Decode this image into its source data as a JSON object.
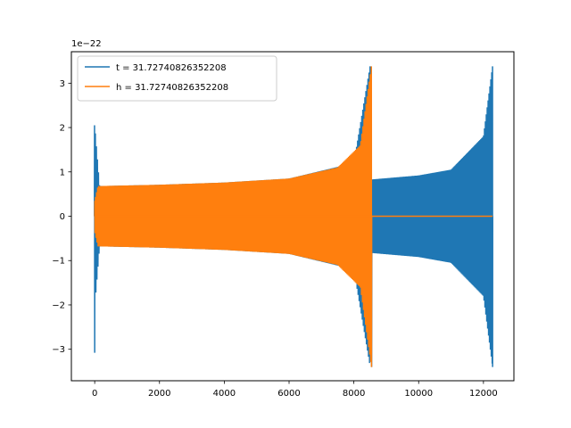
{
  "chart_data": {
    "type": "line",
    "title": "",
    "xlabel": "",
    "ylabel": "",
    "y_offset_label": "1e−22",
    "y_scale_exponent": -22,
    "xlim": [
      -720,
      12940
    ],
    "ylim": [
      -3.71,
      3.71
    ],
    "xticks": [
      0,
      2000,
      4000,
      6000,
      8000,
      10000,
      12000
    ],
    "xtick_labels": [
      "0",
      "2000",
      "4000",
      "6000",
      "8000",
      "10000",
      "12000"
    ],
    "yticks": [
      3,
      2,
      1,
      0,
      -1,
      -2,
      -3
    ],
    "ytick_labels": [
      "3",
      "2",
      "1",
      "0",
      "−1",
      "−2",
      "−3"
    ],
    "grid": false,
    "legend_position": "top-left",
    "series": [
      {
        "name": "t = 31.72740826352208",
        "color": "#1f77b4",
        "envelope": [
          {
            "x": 0,
            "amp": 2.05,
            "note": "initial spike, min -3.08"
          },
          {
            "x": 150,
            "amp": 0.68
          },
          {
            "x": 2000,
            "amp": 0.71
          },
          {
            "x": 4000,
            "amp": 0.76
          },
          {
            "x": 6000,
            "amp": 0.85
          },
          {
            "x": 8000,
            "amp": 1.2
          },
          {
            "x": 8500,
            "amp": 3.38
          },
          {
            "x": 8560,
            "amp": 0.83
          },
          {
            "x": 10000,
            "amp": 0.92
          },
          {
            "x": 11000,
            "amp": 1.05
          },
          {
            "x": 12000,
            "amp": 1.8
          },
          {
            "x": 12280,
            "amp": 3.38
          }
        ]
      },
      {
        "name": "h = 31.72740826352208",
        "color": "#ff7f0e",
        "envelope": [
          {
            "x": 0,
            "amp": 0.35
          },
          {
            "x": 100,
            "amp": 0.68
          },
          {
            "x": 2000,
            "amp": 0.71
          },
          {
            "x": 4000,
            "amp": 0.76
          },
          {
            "x": 6000,
            "amp": 0.85
          },
          {
            "x": 7500,
            "amp": 1.1
          },
          {
            "x": 8200,
            "amp": 1.6
          },
          {
            "x": 8540,
            "amp": 3.38
          }
        ],
        "flat_after": [
          8550,
          12280
        ]
      }
    ]
  }
}
